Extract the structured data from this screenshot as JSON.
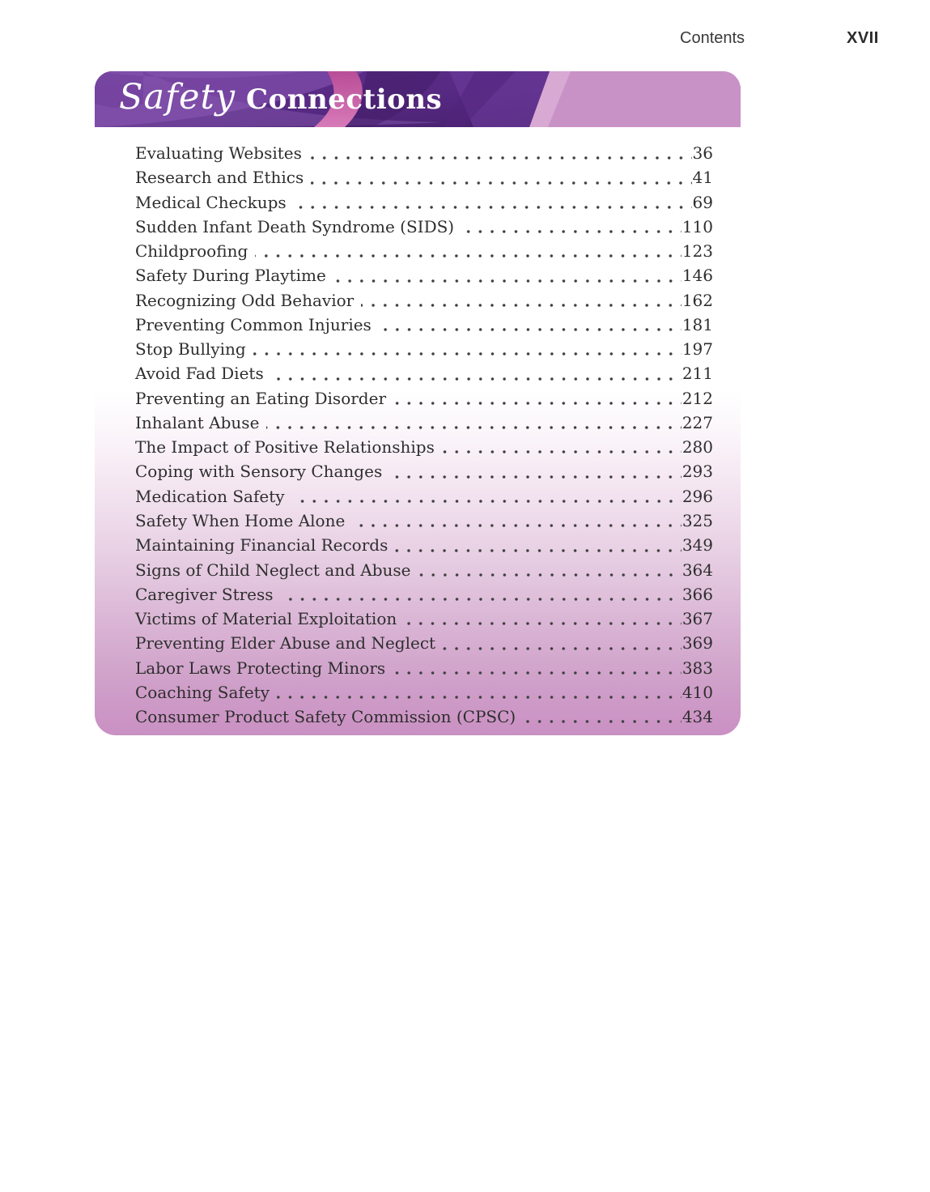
{
  "header": {
    "section_label": "Contents",
    "page_number": "XVII"
  },
  "banner": {
    "title_italic": "Safety",
    "title_bold": "Connections"
  },
  "toc": {
    "entries": [
      {
        "label": "Evaluating Websites",
        "page": "36"
      },
      {
        "label": "Research and Ethics",
        "page": "41"
      },
      {
        "label": "Medical Checkups",
        "page": "69"
      },
      {
        "label": "Sudden Infant Death Syndrome (SIDS)",
        "page": "110"
      },
      {
        "label": "Childproofing",
        "page": "123"
      },
      {
        "label": "Safety During Playtime",
        "page": "146"
      },
      {
        "label": "Recognizing Odd Behavior",
        "page": "162"
      },
      {
        "label": "Preventing Common Injuries",
        "page": "181"
      },
      {
        "label": "Stop Bullying",
        "page": "197"
      },
      {
        "label": "Avoid Fad Diets",
        "page": "211"
      },
      {
        "label": "Preventing an Eating Disorder",
        "page": "212"
      },
      {
        "label": "Inhalant Abuse",
        "page": "227"
      },
      {
        "label": "The Impact of Positive Relationships",
        "page": "280"
      },
      {
        "label": "Coping with Sensory Changes",
        "page": "293"
      },
      {
        "label": "Medication Safety",
        "page": "296"
      },
      {
        "label": "Safety When Home Alone",
        "page": "325"
      },
      {
        "label": "Maintaining Financial Records",
        "page": "349"
      },
      {
        "label": "Signs of Child Neglect and Abuse",
        "page": "364"
      },
      {
        "label": "Caregiver Stress",
        "page": "366"
      },
      {
        "label": "Victims of Material Exploitation",
        "page": "367"
      },
      {
        "label": "Preventing Elder Abuse and Neglect",
        "page": "369"
      },
      {
        "label": "Labor Laws Protecting Minors",
        "page": "383"
      },
      {
        "label": "Coaching Safety",
        "page": "410"
      },
      {
        "label": "Consumer Product Safety Commission (CPSC)",
        "page": "434"
      }
    ]
  },
  "colors": {
    "banner_pink": "#c992c6",
    "banner_purple_dark": "#45206b",
    "banner_purple_mid": "#5f2f8c",
    "banner_purple_light": "#7a48a4",
    "banner_magenta": "#bd549c",
    "panel_bottom_pink": "#ca90c3",
    "text": "#2e2e2e"
  }
}
